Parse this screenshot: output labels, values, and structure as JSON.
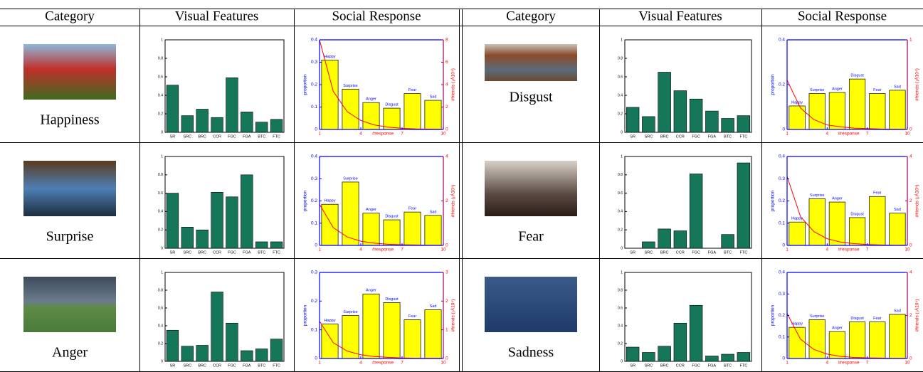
{
  "header": [
    "Category",
    "Visual Features",
    "Social Response",
    "Category",
    "Visual Features",
    "Social Response"
  ],
  "features": [
    "SR",
    "SRC",
    "BRC",
    "CCR",
    "FGC",
    "FGA",
    "BTC",
    "FTC"
  ],
  "emotions": [
    "Happy",
    "Surprise",
    "Anger",
    "Disgust",
    "Fear",
    "Sad"
  ],
  "social_axes": {
    "xlabel": "#response",
    "ylabel": "proportion",
    "y2label": "#friends (¡Á10⁴)",
    "xlim": [
      1,
      10
    ],
    "xticks": [
      1,
      4,
      7,
      10
    ]
  },
  "colors": {
    "feature_bar": "#16765a",
    "response_bar": "#ffff00",
    "friends_line": "#ff0000",
    "left_axis": "#0000ff",
    "right_axis": "#a0005a"
  },
  "panels": [
    {
      "category": "Happiness",
      "visual": {
        "values": [
          0.51,
          0.18,
          0.25,
          0.16,
          0.59,
          0.22,
          0.11,
          0.14
        ],
        "ylim": [
          0,
          1
        ],
        "yticks": [
          0,
          0.2,
          0.4,
          0.6,
          0.8,
          1
        ]
      },
      "social": {
        "values": [
          0.31,
          0.18,
          0.12,
          0.095,
          0.16,
          0.13
        ],
        "ylim": [
          0,
          0.4
        ],
        "yticks": [
          0,
          0.1,
          0.2,
          0.3,
          0.4
        ],
        "y2lim": [
          0,
          8
        ],
        "y2ticks": [
          0,
          2,
          4,
          6,
          8
        ],
        "line": {
          "x": [
            1,
            2,
            3,
            4,
            5,
            6,
            7,
            8,
            9,
            10
          ],
          "values": [
            8,
            3.4,
            1.6,
            0.8,
            0.4,
            0.2,
            0.1,
            0.05,
            0.03,
            0.02
          ]
        }
      }
    },
    {
      "category": "Surprise",
      "visual": {
        "values": [
          0.6,
          0.23,
          0.2,
          0.61,
          0.56,
          0.8,
          0.07,
          0.07
        ],
        "ylim": [
          0,
          1
        ],
        "yticks": [
          0,
          0.2,
          0.4,
          0.6,
          0.8,
          1
        ]
      },
      "social": {
        "values": [
          0.185,
          0.285,
          0.145,
          0.115,
          0.15,
          0.135
        ],
        "ylim": [
          0,
          0.4
        ],
        "yticks": [
          0,
          0.1,
          0.2,
          0.3,
          0.4
        ],
        "y2lim": [
          0,
          4
        ],
        "y2ticks": [
          0,
          2,
          4
        ],
        "line": {
          "x": [
            1,
            2,
            3,
            4,
            5,
            6,
            7,
            8,
            9,
            10
          ],
          "values": [
            1.85,
            0.8,
            0.38,
            0.19,
            0.1,
            0.05,
            0.03,
            0.02,
            0.01,
            0.01
          ]
        }
      }
    },
    {
      "category": "Anger",
      "visual": {
        "values": [
          0.35,
          0.17,
          0.18,
          0.78,
          0.43,
          0.12,
          0.14,
          0.25
        ],
        "ylim": [
          0,
          1
        ],
        "yticks": [
          0,
          0.2,
          0.4,
          0.6,
          0.8,
          1
        ]
      },
      "social": {
        "values": [
          0.12,
          0.15,
          0.225,
          0.195,
          0.135,
          0.17
        ],
        "ylim": [
          0,
          0.3
        ],
        "yticks": [
          0,
          0.1,
          0.2,
          0.3
        ],
        "y2lim": [
          0,
          3
        ],
        "y2ticks": [
          0,
          1,
          2,
          3
        ],
        "line": {
          "x": [
            1,
            2,
            3,
            4,
            5,
            6,
            7,
            8,
            9,
            10
          ],
          "values": [
            1.3,
            0.55,
            0.26,
            0.13,
            0.07,
            0.04,
            0.02,
            0.01,
            0.01,
            0.01
          ]
        }
      }
    },
    {
      "category": "Disgust",
      "visual": {
        "values": [
          0.27,
          0.17,
          0.65,
          0.45,
          0.36,
          0.23,
          0.15,
          0.18
        ],
        "ylim": [
          0,
          1
        ],
        "yticks": [
          0,
          0.2,
          0.4,
          0.6,
          0.8,
          1
        ]
      },
      "social": {
        "values": [
          0.105,
          0.16,
          0.165,
          0.225,
          0.16,
          0.175
        ],
        "ylim": [
          0,
          0.4
        ],
        "yticks": [
          0,
          0.2,
          0.4
        ],
        "y2lim": [
          0,
          1
        ],
        "y2ticks": [
          0,
          1
        ],
        "line": {
          "x": [
            1,
            2,
            3,
            4,
            5,
            6,
            7,
            8,
            9,
            10
          ],
          "values": [
            0.55,
            0.24,
            0.11,
            0.05,
            0.03,
            0.015,
            0.01,
            0.005,
            0.003,
            0.002
          ]
        }
      }
    },
    {
      "category": "Fear",
      "visual": {
        "values": [
          0,
          0.07,
          0.21,
          0.19,
          0.81,
          0,
          0.15,
          0.93
        ],
        "ylim": [
          0,
          1
        ],
        "yticks": [
          0,
          0.2,
          0.4,
          0.6,
          0.8,
          1
        ]
      },
      "social": {
        "values": [
          0.105,
          0.21,
          0.195,
          0.125,
          0.22,
          0.145
        ],
        "ylim": [
          0,
          0.4
        ],
        "yticks": [
          0,
          0.1,
          0.2,
          0.3,
          0.4
        ],
        "y2lim": [
          0,
          4
        ],
        "y2ticks": [
          0,
          2,
          4
        ],
        "line": {
          "x": [
            1,
            2,
            3,
            4,
            5,
            6,
            7,
            8,
            9,
            10
          ],
          "values": [
            3.1,
            1.3,
            0.62,
            0.3,
            0.15,
            0.08,
            0.04,
            0.02,
            0.01,
            0.01
          ]
        }
      }
    },
    {
      "category": "Sadness",
      "visual": {
        "values": [
          0.16,
          0.1,
          0.17,
          0.43,
          0.63,
          0.06,
          0.08,
          0.1
        ],
        "ylim": [
          0,
          1
        ],
        "yticks": [
          0,
          0.2,
          0.4,
          0.6,
          0.8,
          1
        ]
      },
      "social": {
        "values": [
          0.145,
          0.18,
          0.125,
          0.17,
          0.17,
          0.205
        ],
        "ylim": [
          0,
          0.4
        ],
        "yticks": [
          0,
          0.1,
          0.2,
          0.3,
          0.4
        ],
        "y2lim": [
          0,
          4
        ],
        "y2ticks": [
          0,
          2,
          4
        ],
        "line": {
          "x": [
            1,
            2,
            3,
            4,
            5,
            6,
            7,
            8,
            9,
            10
          ],
          "values": [
            2.1,
            0.9,
            0.42,
            0.2,
            0.1,
            0.05,
            0.03,
            0.02,
            0.01,
            0.01
          ]
        }
      }
    }
  ]
}
